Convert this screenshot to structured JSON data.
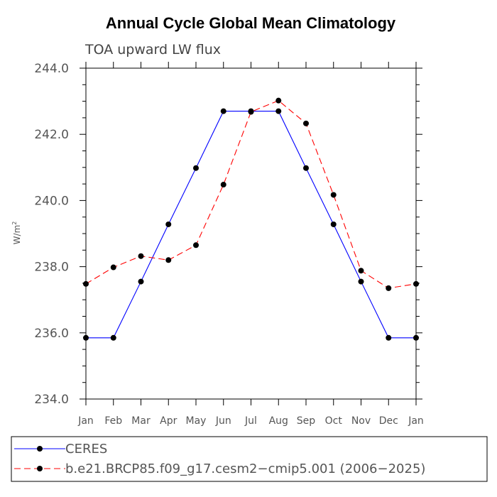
{
  "chart_data": {
    "type": "line",
    "title": "Annual Cycle Global Mean Climatology",
    "subtitle": "TOA upward LW flux",
    "ylabel": "W/m",
    "ylabel_sup": "2",
    "ylim": [
      234.0,
      244.0
    ],
    "yticks": [
      234.0,
      236.0,
      238.0,
      240.0,
      242.0,
      244.0
    ],
    "ytick_labels": [
      "234.0",
      "236.0",
      "238.0",
      "240.0",
      "242.0",
      "244.0"
    ],
    "categories": [
      "Jan",
      "Feb",
      "Mar",
      "Apr",
      "May",
      "Jun",
      "Jul",
      "Aug",
      "Sep",
      "Oct",
      "Nov",
      "Dec",
      "Jan"
    ],
    "grid": false,
    "legend_position": "bottom",
    "series": [
      {
        "name": "CERES",
        "color": "#0000ff",
        "dash": "solid",
        "values": [
          235.85,
          235.85,
          237.55,
          239.28,
          240.98,
          242.7,
          242.7,
          242.7,
          240.98,
          239.28,
          237.55,
          235.85,
          235.85
        ]
      },
      {
        "name": "b.e21.BRCP85.f09_g17.cesm2−cmip5.001 (2006−2025)",
        "color": "#ff0000",
        "dash": "dashed",
        "values": [
          237.48,
          237.98,
          238.32,
          238.2,
          238.65,
          240.48,
          242.68,
          243.02,
          242.33,
          240.17,
          237.88,
          237.35,
          237.48
        ]
      }
    ]
  }
}
